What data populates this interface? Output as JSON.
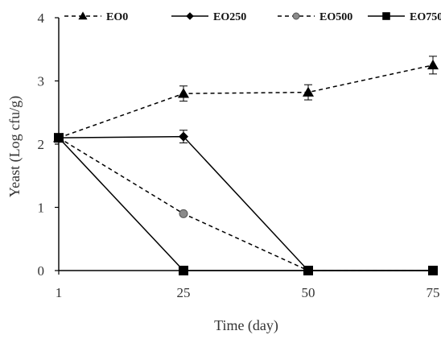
{
  "chart_data": {
    "type": "line",
    "title": "",
    "xlabel": "Time (day)",
    "ylabel": "Yeast (Log cfu/g)",
    "categories": [
      "1",
      "25",
      "50",
      "75"
    ],
    "ylim": [
      0,
      4
    ],
    "yticks": [
      "0",
      "1",
      "2",
      "3",
      "4"
    ],
    "grid": false,
    "legend_position": "top",
    "series": [
      {
        "name": "EO0",
        "values": [
          2.1,
          2.8,
          2.82,
          3.25
        ],
        "errors": [
          0,
          0.12,
          0.12,
          0.14
        ],
        "marker": "triangle",
        "line_style": "dashed",
        "marker_color": "#000000"
      },
      {
        "name": "EO250",
        "values": [
          2.1,
          2.12,
          0,
          0
        ],
        "errors": [
          0,
          0.1,
          0,
          0
        ],
        "marker": "diamond",
        "line_style": "solid",
        "marker_color": "#000000"
      },
      {
        "name": "EO500",
        "values": [
          2.1,
          0.9,
          0,
          0
        ],
        "errors": [
          0,
          0,
          0,
          0
        ],
        "marker": "circle",
        "line_style": "dashed",
        "marker_color": "#8a8a8a"
      },
      {
        "name": "EO750",
        "values": [
          2.1,
          0,
          0,
          0
        ],
        "errors": [
          0,
          0,
          0,
          0
        ],
        "marker": "square",
        "line_style": "solid",
        "marker_color": "#000000"
      }
    ]
  }
}
